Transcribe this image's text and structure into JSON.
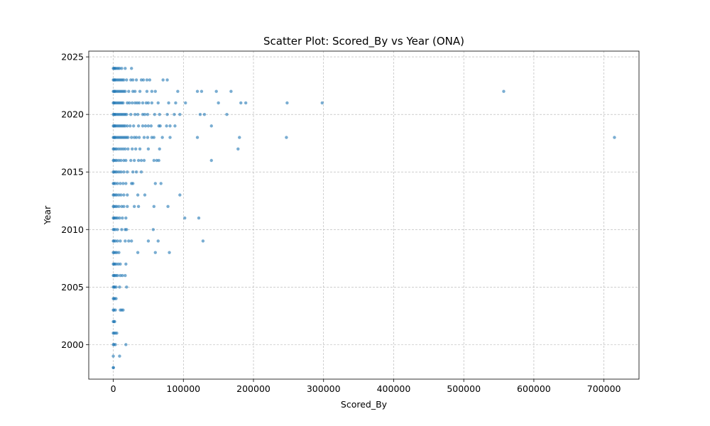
{
  "chart_data": {
    "type": "scatter",
    "title": "Scatter Plot: Scored_By vs Year (ONA)",
    "xlabel": "Scored_By",
    "ylabel": "Year",
    "xlim": [
      -35000,
      750000
    ],
    "ylim": [
      1997,
      2025.5
    ],
    "xticks": [
      0,
      100000,
      200000,
      300000,
      400000,
      500000,
      600000,
      700000
    ],
    "yticks": [
      2000,
      2005,
      2010,
      2015,
      2020,
      2025
    ],
    "grid": true,
    "series": [
      {
        "color": "#1f77b4",
        "points": [
          [
            0,
            1998
          ],
          [
            200,
            1998
          ],
          [
            0,
            1999
          ],
          [
            9000,
            1999
          ],
          [
            0,
            2000
          ],
          [
            1000,
            2000
          ],
          [
            3000,
            2000
          ],
          [
            18000,
            2000
          ],
          [
            0,
            2001
          ],
          [
            1000,
            2001
          ],
          [
            3000,
            2001
          ],
          [
            5000,
            2001
          ],
          [
            0,
            2002
          ],
          [
            1000,
            2002
          ],
          [
            2000,
            2002
          ],
          [
            0,
            2003
          ],
          [
            1000,
            2003
          ],
          [
            3000,
            2003
          ],
          [
            10000,
            2003
          ],
          [
            12000,
            2003
          ],
          [
            14000,
            2003
          ],
          [
            0,
            2004
          ],
          [
            1000,
            2004
          ],
          [
            2000,
            2004
          ],
          [
            4000,
            2004
          ],
          [
            0,
            2005
          ],
          [
            1000,
            2005
          ],
          [
            2000,
            2005
          ],
          [
            4000,
            2005
          ],
          [
            9000,
            2005
          ],
          [
            19000,
            2005
          ],
          [
            0,
            2006
          ],
          [
            1000,
            2006
          ],
          [
            2000,
            2006
          ],
          [
            4000,
            2006
          ],
          [
            6000,
            2006
          ],
          [
            10000,
            2006
          ],
          [
            13000,
            2006
          ],
          [
            17000,
            2006
          ],
          [
            0,
            2007
          ],
          [
            1000,
            2007
          ],
          [
            2000,
            2007
          ],
          [
            4000,
            2007
          ],
          [
            7000,
            2007
          ],
          [
            10000,
            2007
          ],
          [
            18000,
            2007
          ],
          [
            0,
            2008
          ],
          [
            1000,
            2008
          ],
          [
            3000,
            2008
          ],
          [
            5000,
            2008
          ],
          [
            8000,
            2008
          ],
          [
            35000,
            2008
          ],
          [
            60000,
            2008
          ],
          [
            80000,
            2008
          ],
          [
            0,
            2009
          ],
          [
            1000,
            2009
          ],
          [
            3000,
            2009
          ],
          [
            6000,
            2009
          ],
          [
            10000,
            2009
          ],
          [
            17000,
            2009
          ],
          [
            22000,
            2009
          ],
          [
            26000,
            2009
          ],
          [
            50000,
            2009
          ],
          [
            64000,
            2009
          ],
          [
            128000,
            2009
          ],
          [
            0,
            2010
          ],
          [
            1000,
            2010
          ],
          [
            3000,
            2010
          ],
          [
            6000,
            2010
          ],
          [
            12000,
            2010
          ],
          [
            17000,
            2010
          ],
          [
            19000,
            2010
          ],
          [
            57000,
            2010
          ],
          [
            0,
            2011
          ],
          [
            1000,
            2011
          ],
          [
            2000,
            2011
          ],
          [
            4000,
            2011
          ],
          [
            6000,
            2011
          ],
          [
            9000,
            2011
          ],
          [
            13000,
            2011
          ],
          [
            18000,
            2011
          ],
          [
            102000,
            2011
          ],
          [
            122000,
            2011
          ],
          [
            0,
            2012
          ],
          [
            1000,
            2012
          ],
          [
            3000,
            2012
          ],
          [
            5000,
            2012
          ],
          [
            8000,
            2012
          ],
          [
            12000,
            2012
          ],
          [
            15000,
            2012
          ],
          [
            20000,
            2012
          ],
          [
            30000,
            2012
          ],
          [
            36000,
            2012
          ],
          [
            58000,
            2012
          ],
          [
            78000,
            2012
          ],
          [
            0,
            2013
          ],
          [
            1000,
            2013
          ],
          [
            3000,
            2013
          ],
          [
            5000,
            2013
          ],
          [
            8000,
            2013
          ],
          [
            11000,
            2013
          ],
          [
            15000,
            2013
          ],
          [
            20000,
            2013
          ],
          [
            35000,
            2013
          ],
          [
            45000,
            2013
          ],
          [
            95000,
            2013
          ],
          [
            0,
            2014
          ],
          [
            1000,
            2014
          ],
          [
            3000,
            2014
          ],
          [
            6000,
            2014
          ],
          [
            10000,
            2014
          ],
          [
            14000,
            2014
          ],
          [
            18000,
            2014
          ],
          [
            26000,
            2014
          ],
          [
            28000,
            2014
          ],
          [
            60000,
            2014
          ],
          [
            68000,
            2014
          ],
          [
            0,
            2015
          ],
          [
            1000,
            2015
          ],
          [
            3000,
            2015
          ],
          [
            5000,
            2015
          ],
          [
            8000,
            2015
          ],
          [
            11000,
            2015
          ],
          [
            15000,
            2015
          ],
          [
            20000,
            2015
          ],
          [
            28000,
            2015
          ],
          [
            33000,
            2015
          ],
          [
            40000,
            2015
          ],
          [
            0,
            2016
          ],
          [
            1000,
            2016
          ],
          [
            3000,
            2016
          ],
          [
            5000,
            2016
          ],
          [
            8000,
            2016
          ],
          [
            11000,
            2016
          ],
          [
            15000,
            2016
          ],
          [
            18000,
            2016
          ],
          [
            25000,
            2016
          ],
          [
            30000,
            2016
          ],
          [
            36000,
            2016
          ],
          [
            40000,
            2016
          ],
          [
            44000,
            2016
          ],
          [
            58000,
            2016
          ],
          [
            62000,
            2016
          ],
          [
            65000,
            2016
          ],
          [
            140000,
            2016
          ],
          [
            0,
            2017
          ],
          [
            1000,
            2017
          ],
          [
            3000,
            2017
          ],
          [
            5000,
            2017
          ],
          [
            8000,
            2017
          ],
          [
            11000,
            2017
          ],
          [
            14000,
            2017
          ],
          [
            17000,
            2017
          ],
          [
            21000,
            2017
          ],
          [
            27000,
            2017
          ],
          [
            32000,
            2017
          ],
          [
            38000,
            2017
          ],
          [
            50000,
            2017
          ],
          [
            66000,
            2017
          ],
          [
            178000,
            2017
          ],
          [
            0,
            2018
          ],
          [
            1000,
            2018
          ],
          [
            2000,
            2018
          ],
          [
            3000,
            2018
          ],
          [
            5000,
            2018
          ],
          [
            7000,
            2018
          ],
          [
            9000,
            2018
          ],
          [
            11000,
            2018
          ],
          [
            13000,
            2018
          ],
          [
            15000,
            2018
          ],
          [
            17000,
            2018
          ],
          [
            19000,
            2018
          ],
          [
            21000,
            2018
          ],
          [
            26000,
            2018
          ],
          [
            30000,
            2018
          ],
          [
            33000,
            2018
          ],
          [
            37000,
            2018
          ],
          [
            44000,
            2018
          ],
          [
            49000,
            2018
          ],
          [
            55000,
            2018
          ],
          [
            58000,
            2018
          ],
          [
            70000,
            2018
          ],
          [
            81000,
            2018
          ],
          [
            120000,
            2018
          ],
          [
            180000,
            2018
          ],
          [
            247000,
            2018
          ],
          [
            715000,
            2018
          ],
          [
            0,
            2019
          ],
          [
            1000,
            2019
          ],
          [
            2000,
            2019
          ],
          [
            3000,
            2019
          ],
          [
            5000,
            2019
          ],
          [
            7000,
            2019
          ],
          [
            9000,
            2019
          ],
          [
            11000,
            2019
          ],
          [
            13000,
            2019
          ],
          [
            15000,
            2019
          ],
          [
            17000,
            2019
          ],
          [
            20000,
            2019
          ],
          [
            24000,
            2019
          ],
          [
            29000,
            2019
          ],
          [
            36000,
            2019
          ],
          [
            42000,
            2019
          ],
          [
            46000,
            2019
          ],
          [
            50000,
            2019
          ],
          [
            54000,
            2019
          ],
          [
            65000,
            2019
          ],
          [
            67000,
            2019
          ],
          [
            76000,
            2019
          ],
          [
            81000,
            2019
          ],
          [
            88000,
            2019
          ],
          [
            140000,
            2019
          ],
          [
            0,
            2020
          ],
          [
            1000,
            2020
          ],
          [
            2000,
            2020
          ],
          [
            3000,
            2020
          ],
          [
            5000,
            2020
          ],
          [
            7000,
            2020
          ],
          [
            9000,
            2020
          ],
          [
            11000,
            2020
          ],
          [
            13000,
            2020
          ],
          [
            15000,
            2020
          ],
          [
            17000,
            2020
          ],
          [
            19000,
            2020
          ],
          [
            25000,
            2020
          ],
          [
            31000,
            2020
          ],
          [
            35000,
            2020
          ],
          [
            42000,
            2020
          ],
          [
            45000,
            2020
          ],
          [
            49000,
            2020
          ],
          [
            59000,
            2020
          ],
          [
            66000,
            2020
          ],
          [
            77000,
            2020
          ],
          [
            87000,
            2020
          ],
          [
            95000,
            2020
          ],
          [
            124000,
            2020
          ],
          [
            130000,
            2020
          ],
          [
            162000,
            2020
          ],
          [
            0,
            2021
          ],
          [
            1000,
            2021
          ],
          [
            2000,
            2021
          ],
          [
            4000,
            2021
          ],
          [
            6000,
            2021
          ],
          [
            8000,
            2021
          ],
          [
            10000,
            2021
          ],
          [
            12000,
            2021
          ],
          [
            14000,
            2021
          ],
          [
            20000,
            2021
          ],
          [
            23000,
            2021
          ],
          [
            27000,
            2021
          ],
          [
            31000,
            2021
          ],
          [
            34000,
            2021
          ],
          [
            37000,
            2021
          ],
          [
            42000,
            2021
          ],
          [
            47000,
            2021
          ],
          [
            50000,
            2021
          ],
          [
            55000,
            2021
          ],
          [
            64000,
            2021
          ],
          [
            79000,
            2021
          ],
          [
            89000,
            2021
          ],
          [
            103000,
            2021
          ],
          [
            150000,
            2021
          ],
          [
            182000,
            2021
          ],
          [
            189000,
            2021
          ],
          [
            248000,
            2021
          ],
          [
            298000,
            2021
          ],
          [
            0,
            2022
          ],
          [
            1000,
            2022
          ],
          [
            2000,
            2022
          ],
          [
            3000,
            2022
          ],
          [
            5000,
            2022
          ],
          [
            7000,
            2022
          ],
          [
            9000,
            2022
          ],
          [
            11000,
            2022
          ],
          [
            13000,
            2022
          ],
          [
            15000,
            2022
          ],
          [
            17000,
            2022
          ],
          [
            22000,
            2022
          ],
          [
            28000,
            2022
          ],
          [
            31000,
            2022
          ],
          [
            38000,
            2022
          ],
          [
            48000,
            2022
          ],
          [
            55000,
            2022
          ],
          [
            60000,
            2022
          ],
          [
            92000,
            2022
          ],
          [
            120000,
            2022
          ],
          [
            126000,
            2022
          ],
          [
            147000,
            2022
          ],
          [
            168000,
            2022
          ],
          [
            557000,
            2022
          ],
          [
            0,
            2023
          ],
          [
            1000,
            2023
          ],
          [
            2000,
            2023
          ],
          [
            3000,
            2023
          ],
          [
            5000,
            2023
          ],
          [
            7000,
            2023
          ],
          [
            9000,
            2023
          ],
          [
            11000,
            2023
          ],
          [
            13000,
            2023
          ],
          [
            15000,
            2023
          ],
          [
            19000,
            2023
          ],
          [
            25000,
            2023
          ],
          [
            28000,
            2023
          ],
          [
            33000,
            2023
          ],
          [
            40000,
            2023
          ],
          [
            43000,
            2023
          ],
          [
            48000,
            2023
          ],
          [
            52000,
            2023
          ],
          [
            71000,
            2023
          ],
          [
            77000,
            2023
          ],
          [
            0,
            2024
          ],
          [
            1000,
            2024
          ],
          [
            2000,
            2024
          ],
          [
            3000,
            2024
          ],
          [
            5000,
            2024
          ],
          [
            7000,
            2024
          ],
          [
            9000,
            2024
          ],
          [
            12000,
            2024
          ],
          [
            17000,
            2024
          ],
          [
            26000,
            2024
          ]
        ]
      }
    ]
  }
}
